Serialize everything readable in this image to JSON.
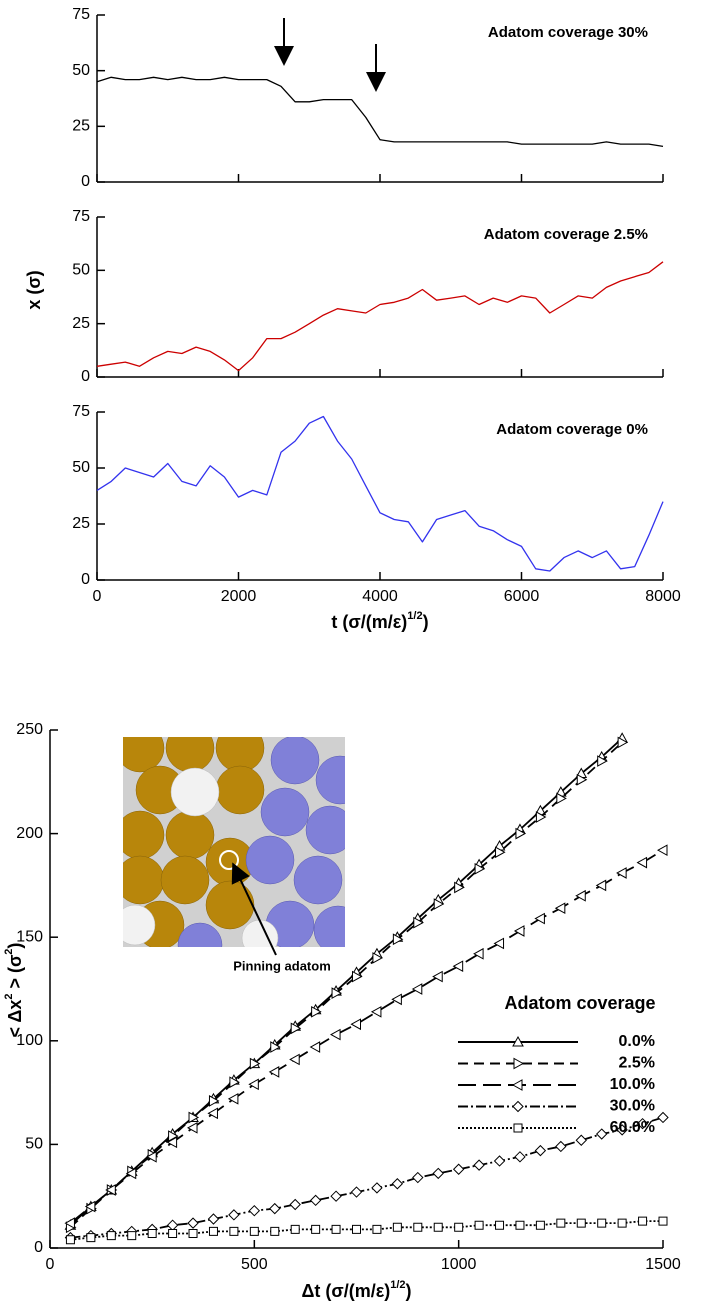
{
  "chart_data": [
    {
      "type": "line",
      "annotation": "Adatom coverage 30%",
      "x": [
        0,
        200,
        400,
        600,
        800,
        1000,
        1200,
        1400,
        1600,
        1800,
        2000,
        2200,
        2400,
        2600,
        2800,
        3000,
        3200,
        3400,
        3600,
        3800,
        4000,
        4200,
        4400,
        4600,
        4800,
        5000,
        5200,
        5400,
        5600,
        5800,
        6000,
        6200,
        6400,
        6600,
        6800,
        7000,
        7200,
        7400,
        7600,
        7800,
        8000
      ],
      "series": [
        {
          "color": "#000000",
          "values": [
            45,
            47,
            46,
            46,
            47,
            46,
            47,
            46,
            46,
            47,
            46,
            46,
            46,
            43,
            36,
            36,
            37,
            37,
            37,
            29,
            19,
            18,
            18,
            18,
            18,
            18,
            18,
            18,
            18,
            18,
            17,
            17,
            17,
            17,
            17,
            17,
            18,
            17,
            17,
            17,
            16
          ]
        }
      ],
      "xlim": [
        0,
        8000
      ],
      "xticks": [
        0,
        2000,
        4000,
        6000,
        8000
      ],
      "ylim": [
        0,
        75
      ],
      "yticks": [
        0,
        25,
        50,
        75
      ]
    },
    {
      "type": "line",
      "annotation": "Adatom coverage 2.5%",
      "y_label": [
        "x (σ)"
      ],
      "x": [
        0,
        200,
        400,
        600,
        800,
        1000,
        1200,
        1400,
        1600,
        1800,
        2000,
        2200,
        2400,
        2600,
        2800,
        3000,
        3200,
        3400,
        3600,
        3800,
        4000,
        4200,
        4400,
        4600,
        4800,
        5000,
        5200,
        5400,
        5600,
        5800,
        6000,
        6200,
        6400,
        6600,
        6800,
        7000,
        7200,
        7400,
        7600,
        7800,
        8000
      ],
      "series": [
        {
          "color": "#cc0000",
          "values": [
            5,
            6,
            7,
            5,
            9,
            12,
            11,
            14,
            12,
            8,
            3,
            9,
            18,
            18,
            21,
            25,
            29,
            32,
            31,
            30,
            34,
            35,
            37,
            41,
            36,
            37,
            38,
            34,
            37,
            35,
            38,
            37,
            30,
            34,
            38,
            37,
            42,
            45,
            47,
            49,
            54
          ]
        }
      ],
      "xlim": [
        0,
        8000
      ],
      "xticks": [
        0,
        2000,
        4000,
        6000,
        8000
      ],
      "ylim": [
        0,
        75
      ],
      "yticks": [
        0,
        25,
        50,
        75
      ]
    },
    {
      "type": "line",
      "annotation": "Adatom coverage 0%",
      "x_label": [
        "t (σ/(m/ε)",
        "1/2",
        ")"
      ],
      "x_tick_labels": true,
      "x": [
        0,
        200,
        400,
        600,
        800,
        1000,
        1200,
        1400,
        1600,
        1800,
        2000,
        2200,
        2400,
        2600,
        2800,
        3000,
        3200,
        3400,
        3600,
        3800,
        4000,
        4200,
        4400,
        4600,
        4800,
        5000,
        5200,
        5400,
        5600,
        5800,
        6000,
        6200,
        6400,
        6600,
        6800,
        7000,
        7200,
        7400,
        7600,
        7800,
        8000
      ],
      "series": [
        {
          "color": "#3333ee",
          "values": [
            40,
            44,
            50,
            48,
            46,
            52,
            44,
            42,
            51,
            46,
            37,
            40,
            38,
            57,
            62,
            70,
            73,
            62,
            54,
            42,
            30,
            27,
            26,
            17,
            27,
            29,
            31,
            24,
            22,
            18,
            15,
            5,
            4,
            10,
            13,
            10,
            13,
            5,
            6,
            20,
            35
          ]
        }
      ],
      "xlim": [
        0,
        8000
      ],
      "xticks": [
        0,
        2000,
        4000,
        6000,
        8000
      ],
      "ylim": [
        0,
        75
      ],
      "yticks": [
        0,
        25,
        50,
        75
      ]
    },
    {
      "type": "line",
      "x_label": [
        "Δt  (σ/(m/ε)",
        "1/2",
        ")"
      ],
      "y_label": [
        "< Δx",
        "2",
        " > (σ",
        "2",
        ")"
      ],
      "x_tick_labels": true,
      "legend_title": "Adatom coverage",
      "inset_label": "Pinning adatom",
      "x": [
        50,
        100,
        150,
        200,
        250,
        300,
        350,
        400,
        450,
        500,
        550,
        600,
        650,
        700,
        750,
        800,
        850,
        900,
        950,
        1000,
        1050,
        1100,
        1150,
        1200,
        1250,
        1300,
        1350,
        1400,
        1450,
        1500
      ],
      "series": [
        {
          "name": "0.0%",
          "color": "#000000",
          "dash": "none",
          "marker": "triangle-up",
          "values": [
            11,
            20,
            28,
            37,
            46,
            55,
            63,
            72,
            81,
            89,
            98,
            107,
            115,
            124,
            133,
            142,
            150,
            159,
            168,
            176,
            185,
            194,
            202,
            211,
            220,
            229,
            237,
            246,
            null,
            null
          ]
        },
        {
          "name": "2.5%",
          "color": "#000000",
          "dash": "10,6",
          "marker": "triangle-right",
          "values": [
            10,
            19,
            28,
            37,
            45,
            54,
            63,
            71,
            80,
            89,
            97,
            106,
            114,
            123,
            131,
            140,
            149,
            157,
            166,
            174,
            183,
            191,
            200,
            208,
            217,
            226,
            235,
            244,
            null,
            null
          ]
        },
        {
          "name": "10.0%",
          "color": "#000000",
          "dash": "18,7",
          "marker": "triangle-left",
          "values": [
            12,
            20,
            28,
            36,
            44,
            51,
            58,
            65,
            72,
            79,
            85,
            91,
            97,
            103,
            108,
            114,
            120,
            125,
            131,
            136,
            142,
            147,
            153,
            159,
            164,
            170,
            175,
            181,
            186,
            192
          ]
        },
        {
          "name": "30.0%",
          "color": "#000000",
          "dash": "10,3,2,3",
          "marker": "diamond",
          "values": [
            5,
            6,
            7,
            8,
            9,
            11,
            12,
            14,
            16,
            18,
            19,
            21,
            23,
            25,
            27,
            29,
            31,
            34,
            36,
            38,
            40,
            42,
            44,
            47,
            49,
            52,
            55,
            57,
            60,
            63
          ]
        },
        {
          "name": "60.0%",
          "color": "#000000",
          "dash": "2,2",
          "marker": "square",
          "values": [
            4,
            5,
            6,
            6,
            7,
            7,
            7,
            8,
            8,
            8,
            8,
            9,
            9,
            9,
            9,
            9,
            10,
            10,
            10,
            10,
            11,
            11,
            11,
            11,
            12,
            12,
            12,
            12,
            13,
            13
          ]
        }
      ],
      "xlim": [
        0,
        1500
      ],
      "xticks": [
        0,
        500,
        1000,
        1500
      ],
      "ylim": [
        0,
        250
      ],
      "yticks": [
        0,
        50,
        100,
        150,
        200,
        250
      ]
    }
  ]
}
